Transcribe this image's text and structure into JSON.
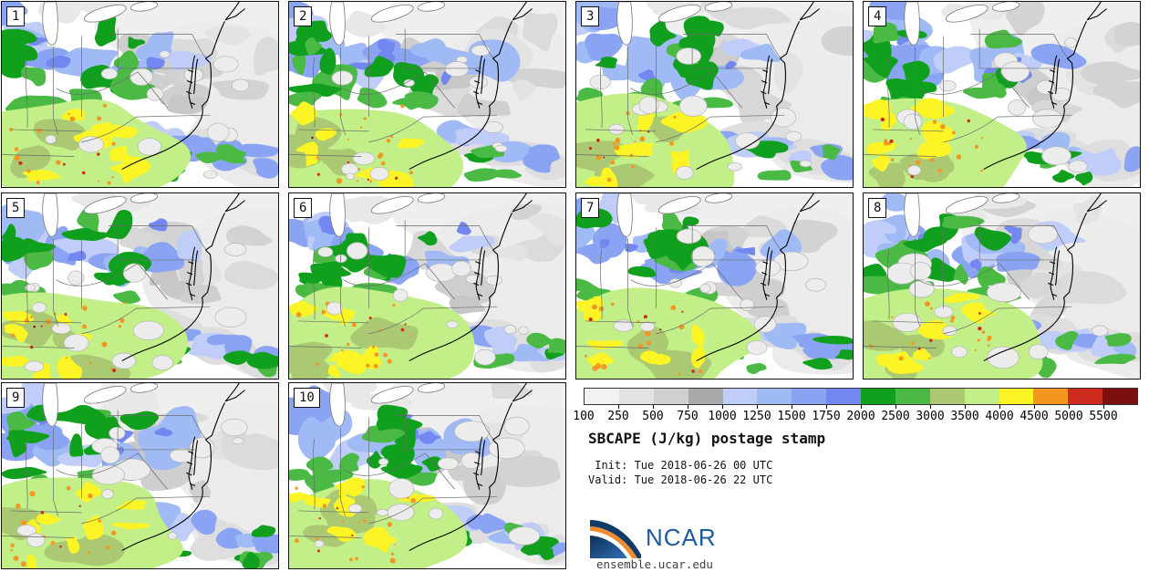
{
  "product": {
    "title": "SBCAPE (J/kg) postage stamp",
    "init_line": " Init: Tue 2018-06-26 00 UTC",
    "valid_line": "Valid: Tue 2018-06-26 22 UTC",
    "logo_text": "NCAR",
    "site_url": "ensemble.ucar.edu"
  },
  "panels": [
    {
      "label": "1"
    },
    {
      "label": "2"
    },
    {
      "label": "3"
    },
    {
      "label": "4"
    },
    {
      "label": "5"
    },
    {
      "label": "6"
    },
    {
      "label": "7"
    },
    {
      "label": "8"
    },
    {
      "label": "9"
    },
    {
      "label": "10"
    }
  ],
  "colorbar": {
    "tick_labels": [
      "100",
      "250",
      "500",
      "750",
      "1000",
      "1250",
      "1500",
      "1750",
      "2000",
      "2500",
      "3000",
      "3500",
      "4000",
      "4500",
      "5000",
      "5500"
    ],
    "colors": [
      "#f2f2f2",
      "#e2e2e2",
      "#d0d0d0",
      "#a9a9a9",
      "#bfcdf8",
      "#a0baf6",
      "#8aa4f3",
      "#7287ef",
      "#11a01e",
      "#4aba45",
      "#abc973",
      "#c2ef87",
      "#fdf425",
      "#f59621",
      "#cf2a1e",
      "#7c1010"
    ]
  },
  "map_colors": {
    "background": "#ffffff",
    "cloud_fill": "#ececec",
    "cloud_edge": "#b5b5b5",
    "state_border": "#6a6a6a",
    "coastline": "#000000",
    "lake_fill": "#ffffff",
    "lake_edge": "#777777",
    "logo_navy": "#123a66",
    "logo_blue": "#1d5a9e",
    "logo_orange": "#ef8b2d"
  }
}
